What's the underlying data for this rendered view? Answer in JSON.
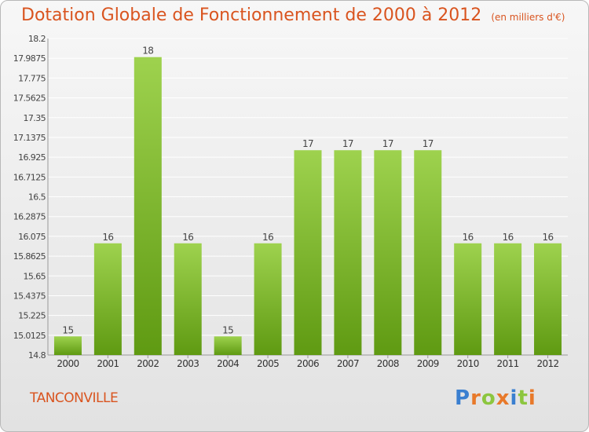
{
  "title": "Dotation Globale de Fonctionnement de 2000 à 2012",
  "subtitle": "(en milliers d'€)",
  "location": "TANCONVILLE",
  "logo": {
    "text": "Proxiti",
    "letters": [
      {
        "ch": "P",
        "color": "#3a7fd0"
      },
      {
        "ch": "r",
        "color": "#e8792a"
      },
      {
        "ch": "o",
        "color": "#8cc63f"
      },
      {
        "ch": "x",
        "color": "#e8792a"
      },
      {
        "ch": "i",
        "color": "#3a7fd0"
      },
      {
        "ch": "t",
        "color": "#8cc63f"
      },
      {
        "ch": "i",
        "color": "#e8792a"
      }
    ]
  },
  "colors": {
    "bar_light": "#9ed24e",
    "bar_dark": "#5f9a12",
    "title": "#d9541f",
    "grid": "#ffffff"
  },
  "chart_data": {
    "type": "bar",
    "categories": [
      "2000",
      "2001",
      "2002",
      "2003",
      "2004",
      "2005",
      "2006",
      "2007",
      "2008",
      "2009",
      "2010",
      "2011",
      "2012"
    ],
    "values": [
      15,
      16,
      18,
      16,
      15,
      16,
      17,
      17,
      17,
      17,
      16,
      16,
      16
    ],
    "value_labels": [
      "15",
      "16",
      "18",
      "16",
      "15",
      "16",
      "17",
      "17",
      "17",
      "17",
      "16",
      "16",
      "16"
    ],
    "ylim": [
      14.8,
      18.2
    ],
    "y_ticks": [
      "14.8",
      "15.0125",
      "15.225",
      "15.4375",
      "15.65",
      "15.8625",
      "16.075",
      "16.2875",
      "16.5",
      "16.7125",
      "16.925",
      "17.1375",
      "17.35",
      "17.5625",
      "17.775",
      "17.9875",
      "18.2"
    ],
    "grid": true,
    "legend": "none"
  }
}
